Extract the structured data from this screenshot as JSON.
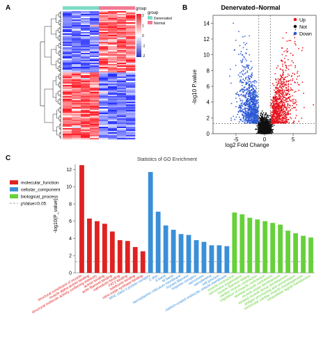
{
  "panels": {
    "a": "A",
    "b": "B",
    "c": "C"
  },
  "chart_data": [
    {
      "type": "heatmap",
      "panel": "A",
      "legend_title": "group",
      "groups": [
        {
          "name": "Denervated",
          "color": "#7ddcc6"
        },
        {
          "name": "Normal",
          "color": "#f27b95"
        }
      ],
      "color_scale": {
        "ticks": [
          2,
          1,
          0,
          -1,
          -2
        ],
        "high": "#e8202a",
        "mid": "#ffffff",
        "low": "#2732c8"
      },
      "columns": 8,
      "blocks": [
        {
          "rows": 0.48,
          "pattern": [
            -1,
            -1,
            -1,
            -1,
            1,
            1,
            1,
            1
          ]
        },
        {
          "rows": 0.52,
          "pattern": [
            1,
            1,
            1,
            1,
            -1,
            -1,
            -1,
            -1
          ]
        }
      ]
    },
    {
      "type": "scatter",
      "panel": "B",
      "title": "Denervated–Normal",
      "xlabel": "log2 Fold Change",
      "ylabel": "-log10 P.value",
      "xlim": [
        -9,
        9
      ],
      "ylim": [
        0,
        15
      ],
      "xticks": [
        -5,
        0,
        5
      ],
      "yticks": [
        0,
        2,
        4,
        6,
        8,
        10,
        12,
        14
      ],
      "thresholds": {
        "logfc": [
          -1,
          1
        ],
        "p": 1.3
      },
      "legend": [
        {
          "name": "Up",
          "color": "#e8141e"
        },
        {
          "name": "Not",
          "color": "#111111"
        },
        {
          "name": "Down",
          "color": "#2b58d6"
        }
      ]
    },
    {
      "type": "bar",
      "panel": "C",
      "title": "Statistics of GO Enrichment",
      "ylabel": "-log10(P_value)",
      "ylim": [
        0,
        12.6
      ],
      "yticks": [
        0,
        2,
        4,
        6,
        8,
        10,
        12
      ],
      "pvalue_line": 1.3,
      "legend": [
        {
          "name": "molecular_function",
          "color": "#e02121",
          "kind": "box"
        },
        {
          "name": "cellular_component",
          "color": "#3a8fd8",
          "kind": "box"
        },
        {
          "name": "biological_process",
          "color": "#66d13a",
          "kind": "box"
        },
        {
          "name": "pValue=0.05",
          "color": "#888888",
          "kind": "dash"
        }
      ],
      "series": [
        {
          "name": "molecular_function",
          "color": "#e02121",
          "categories": [
            "structural constituent of muscle",
            "muscle alpha-actinin binding",
            "structural molecule activity conferring elasticity",
            "actinin binding",
            "actin filament binding",
            "calmodulin binding",
            "FATZ binding",
            "telethonin binding",
            "nitric-oxide synthase binding"
          ],
          "values": [
            12.5,
            6.3,
            6.0,
            5.7,
            4.8,
            3.8,
            3.7,
            3.0,
            2.5
          ]
        },
        {
          "name": "cellular_component",
          "color": "#3a8fd8",
          "categories": [
            "MHC class II protein complex",
            "Z disc",
            "A band",
            "M band",
            "sarcoplasmic reticulum membrane",
            "myosin filament",
            "troponin complex",
            "sarcomere",
            "sarcolemma",
            "cell junction",
            "clathrin-coated endocytic vesicle membrane"
          ],
          "values": [
            11.7,
            7.1,
            5.5,
            5.0,
            4.5,
            4.4,
            3.8,
            3.6,
            3.2,
            3.2,
            3.1
          ]
        },
        {
          "name": "biological_process",
          "color": "#66d13a",
          "categories": [
            "muscle contraction",
            "sarcomere organization",
            "muscle filament sliding",
            "cardiac muscle contraction",
            "regulation of muscle contraction",
            "skeletal muscle contraction",
            "muscle organ development",
            "striated muscle tissue development",
            "antigen processing and presentation",
            "ventricular cardiac muscle morphogenesis",
            "intracellular signal transduction"
          ],
          "values": [
            7.0,
            6.8,
            6.4,
            6.2,
            6.0,
            5.8,
            5.6,
            4.9,
            4.6,
            4.3,
            4.1
          ]
        }
      ]
    }
  ]
}
